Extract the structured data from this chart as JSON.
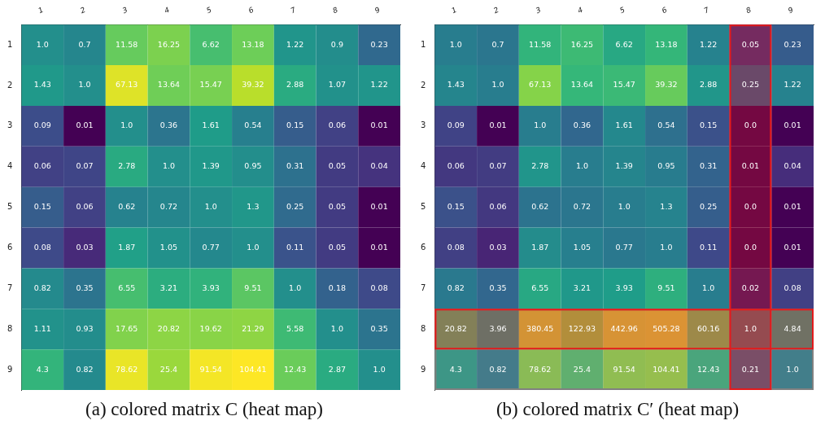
{
  "chart_data": [
    {
      "type": "heatmap",
      "title": "(a) colored matrix C (heat map)",
      "categories": [
        "1",
        "2",
        "3",
        "4",
        "5",
        "6",
        "7",
        "8",
        "9"
      ],
      "y_categories": [
        "1",
        "2",
        "3",
        "4",
        "5",
        "6",
        "7",
        "8",
        "9"
      ],
      "cells": [
        [
          1.0,
          0.7,
          11.58,
          16.25,
          6.62,
          13.18,
          1.22,
          0.9,
          0.23
        ],
        [
          1.43,
          1.0,
          67.13,
          13.64,
          15.47,
          39.32,
          2.88,
          1.07,
          1.22
        ],
        [
          0.09,
          0.01,
          1.0,
          0.36,
          1.61,
          0.54,
          0.15,
          0.06,
          0.01
        ],
        [
          0.06,
          0.07,
          2.78,
          1.0,
          1.39,
          0.95,
          0.31,
          0.05,
          0.04
        ],
        [
          0.15,
          0.06,
          0.62,
          0.72,
          1.0,
          1.3,
          0.25,
          0.05,
          0.01
        ],
        [
          0.08,
          0.03,
          1.87,
          1.05,
          0.77,
          1.0,
          0.11,
          0.05,
          0.01
        ],
        [
          0.82,
          0.35,
          6.55,
          3.21,
          3.93,
          9.51,
          1.0,
          0.18,
          0.08
        ],
        [
          1.11,
          0.93,
          17.65,
          20.82,
          19.62,
          21.29,
          5.58,
          1.0,
          0.35
        ],
        [
          4.3,
          0.82,
          78.62,
          25.4,
          91.54,
          104.41,
          12.43,
          2.87,
          1.0
        ]
      ],
      "cell_labels": [
        [
          "1.0",
          "0.7",
          "11.58",
          "16.25",
          "6.62",
          "13.18",
          "1.22",
          "0.9",
          "0.23"
        ],
        [
          "1.43",
          "1.0",
          "67.13",
          "13.64",
          "15.47",
          "39.32",
          "2.88",
          "1.07",
          "1.22"
        ],
        [
          "0.09",
          "0.01",
          "1.0",
          "0.36",
          "1.61",
          "0.54",
          "0.15",
          "0.06",
          "0.01"
        ],
        [
          "0.06",
          "0.07",
          "2.78",
          "1.0",
          "1.39",
          "0.95",
          "0.31",
          "0.05",
          "0.04"
        ],
        [
          "0.15",
          "0.06",
          "0.62",
          "0.72",
          "1.0",
          "1.3",
          "0.25",
          "0.05",
          "0.01"
        ],
        [
          "0.08",
          "0.03",
          "1.87",
          "1.05",
          "0.77",
          "1.0",
          "0.11",
          "0.05",
          "0.01"
        ],
        [
          "0.82",
          "0.35",
          "6.55",
          "3.21",
          "3.93",
          "9.51",
          "1.0",
          "0.18",
          "0.08"
        ],
        [
          "1.11",
          "0.93",
          "17.65",
          "20.82",
          "19.62",
          "21.29",
          "5.58",
          "1.0",
          "0.35"
        ],
        [
          "4.3",
          "0.82",
          "78.62",
          "25.4",
          "91.54",
          "104.41",
          "12.43",
          "2.87",
          "1.0"
        ]
      ]
    },
    {
      "type": "heatmap",
      "title": "(b) colored matrix C′ (heat map)",
      "categories": [
        "1",
        "2",
        "3",
        "4",
        "5",
        "6",
        "7",
        "8",
        "9"
      ],
      "y_categories": [
        "1",
        "2",
        "3",
        "4",
        "5",
        "6",
        "7",
        "8",
        "9"
      ],
      "cells": [
        [
          1.0,
          0.7,
          11.58,
          16.25,
          6.62,
          13.18,
          1.22,
          0.05,
          0.23
        ],
        [
          1.43,
          1.0,
          67.13,
          13.64,
          15.47,
          39.32,
          2.88,
          0.25,
          1.22
        ],
        [
          0.09,
          0.01,
          1.0,
          0.36,
          1.61,
          0.54,
          0.15,
          0.0,
          0.01
        ],
        [
          0.06,
          0.07,
          2.78,
          1.0,
          1.39,
          0.95,
          0.31,
          0.01,
          0.04
        ],
        [
          0.15,
          0.06,
          0.62,
          0.72,
          1.0,
          1.3,
          0.25,
          0.0,
          0.01
        ],
        [
          0.08,
          0.03,
          1.87,
          1.05,
          0.77,
          1.0,
          0.11,
          0.0,
          0.01
        ],
        [
          0.82,
          0.35,
          6.55,
          3.21,
          3.93,
          9.51,
          1.0,
          0.02,
          0.08
        ],
        [
          20.82,
          3.96,
          380.45,
          122.93,
          442.96,
          505.28,
          60.16,
          1.0,
          4.84
        ],
        [
          4.3,
          0.82,
          78.62,
          25.4,
          91.54,
          104.41,
          12.43,
          0.21,
          1.0
        ]
      ],
      "cell_labels": [
        [
          "1.0",
          "0.7",
          "11.58",
          "16.25",
          "6.62",
          "13.18",
          "1.22",
          "0.05",
          "0.23"
        ],
        [
          "1.43",
          "1.0",
          "67.13",
          "13.64",
          "15.47",
          "39.32",
          "2.88",
          "0.25",
          "1.22"
        ],
        [
          "0.09",
          "0.01",
          "1.0",
          "0.36",
          "1.61",
          "0.54",
          "0.15",
          "0.0",
          "0.01"
        ],
        [
          "0.06",
          "0.07",
          "2.78",
          "1.0",
          "1.39",
          "0.95",
          "0.31",
          "0.01",
          "0.04"
        ],
        [
          "0.15",
          "0.06",
          "0.62",
          "0.72",
          "1.0",
          "1.3",
          "0.25",
          "0.0",
          "0.01"
        ],
        [
          "0.08",
          "0.03",
          "1.87",
          "1.05",
          "0.77",
          "1.0",
          "0.11",
          "0.0",
          "0.01"
        ],
        [
          "0.82",
          "0.35",
          "6.55",
          "3.21",
          "3.93",
          "9.51",
          "1.0",
          "0.02",
          "0.08"
        ],
        [
          "20.82",
          "3.96",
          "380.45",
          "122.93",
          "442.96",
          "505.28",
          "60.16",
          "1.0",
          "4.84"
        ],
        [
          "4.3",
          "0.82",
          "78.62",
          "25.4",
          "91.54",
          "104.41",
          "12.43",
          "0.21",
          "1.0"
        ]
      ],
      "bands": [
        {
          "axis": "y",
          "from": "8",
          "to": "9",
          "color": "#808080"
        },
        {
          "axis": "y",
          "from": "8",
          "to": "8",
          "color": "#e41a1c"
        },
        {
          "axis": "x",
          "from": "8",
          "to": "8",
          "color": "#e41a1c"
        }
      ]
    }
  ]
}
